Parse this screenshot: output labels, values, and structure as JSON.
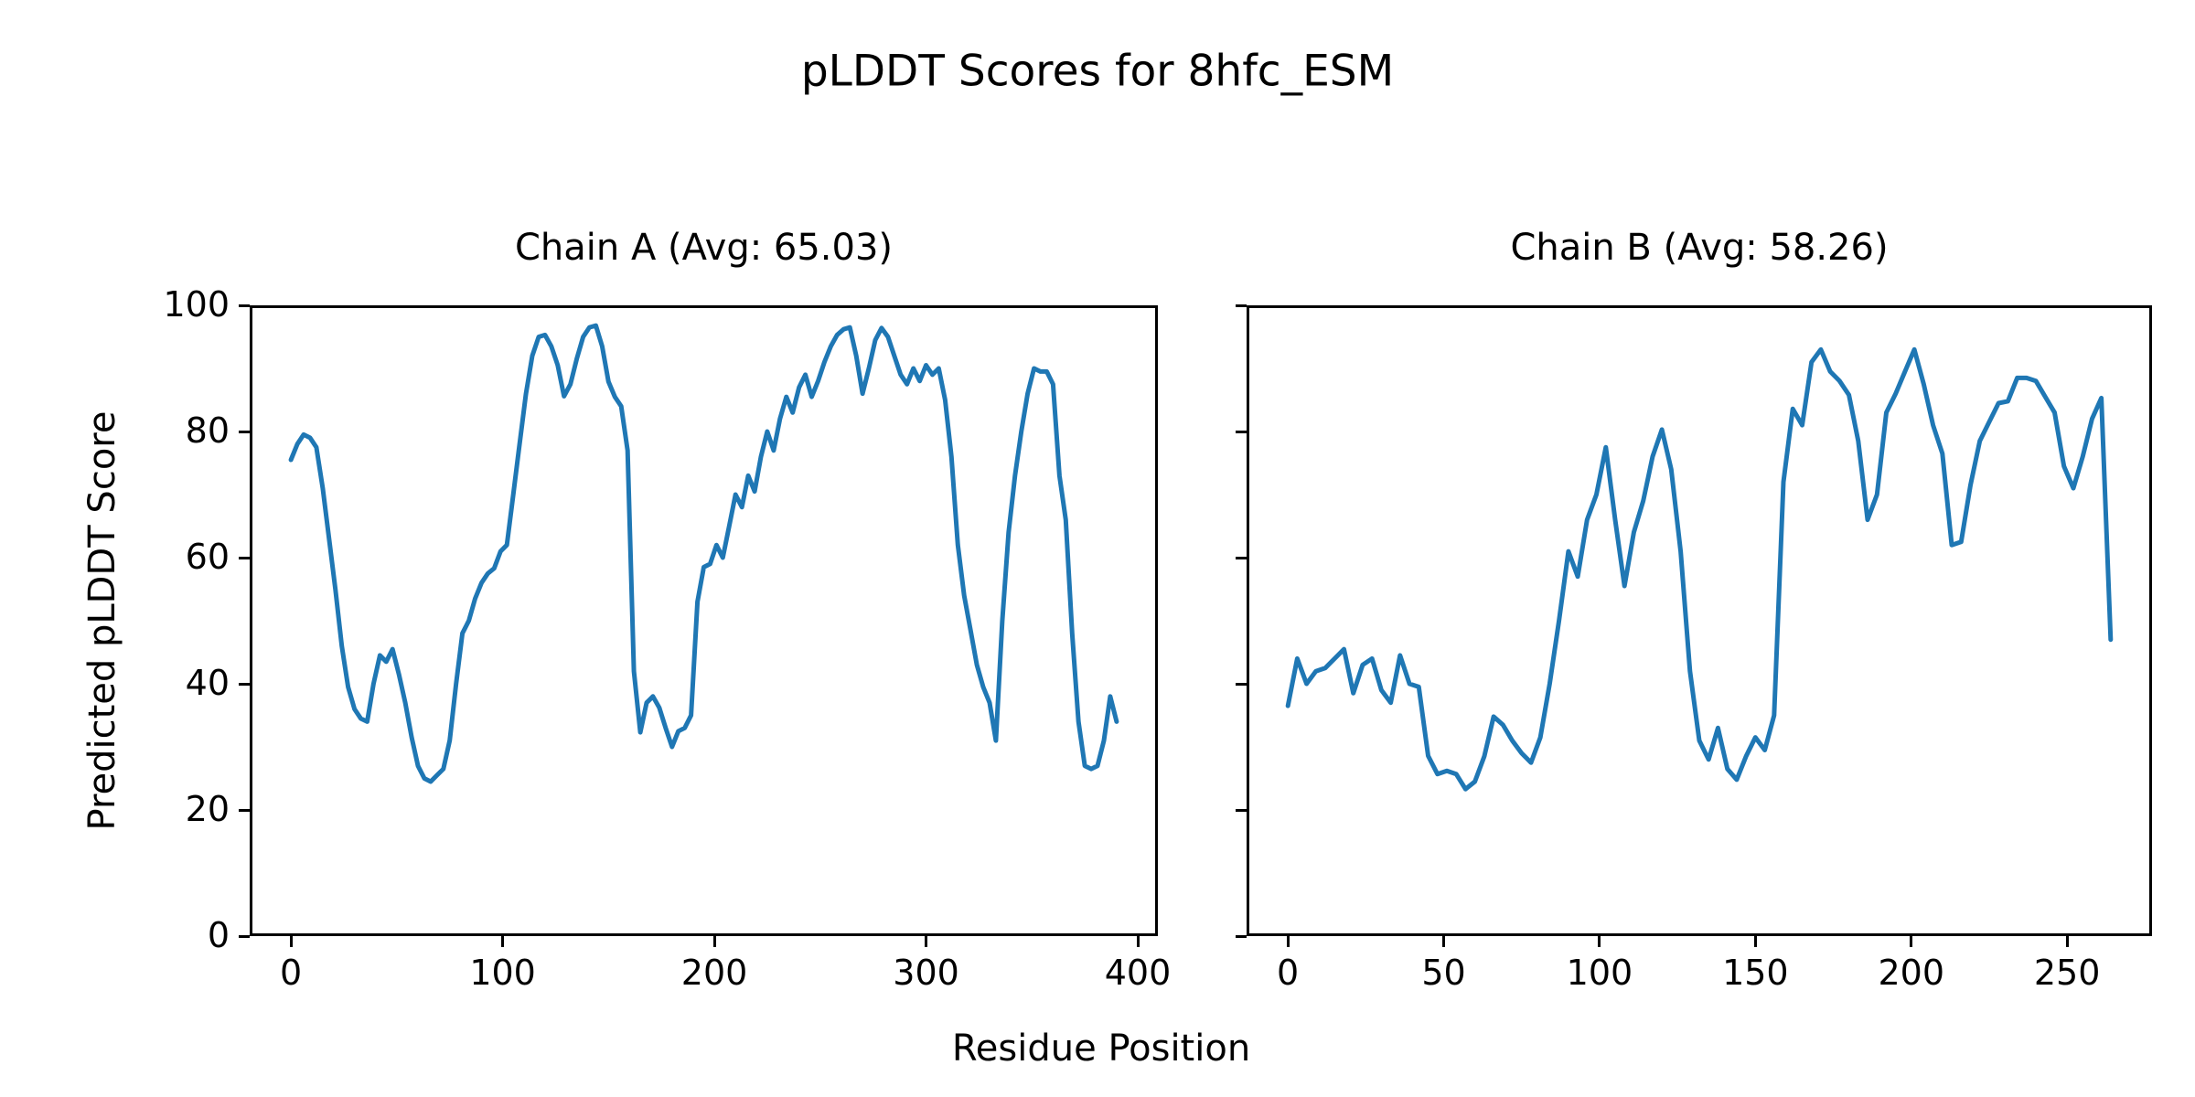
{
  "figure": {
    "title": "pLDDT Scores for 8hfc_ESM",
    "xlabel": "Residue Position",
    "ylabel": "Predicted pLDDT Score",
    "line_color": "#1f77b4",
    "background_color": "#ffffff",
    "text_color": "#000000"
  },
  "chart_data": [
    {
      "type": "line",
      "title": "Chain A (Avg: 65.03)",
      "xlim": [
        -19.5,
        409.5
      ],
      "ylim": [
        0,
        100
      ],
      "xticks": [
        0,
        100,
        200,
        300,
        400
      ],
      "yticks": [
        0,
        20,
        40,
        60,
        80,
        100
      ],
      "show_y_tick_labels": true,
      "grid": false,
      "legend": "none",
      "series": [
        {
          "name": "Chain A pLDDT",
          "x_start": 0,
          "x_step": 3,
          "values": [
            75.5,
            78,
            79.5,
            79,
            77.5,
            71,
            63,
            55,
            46,
            39.5,
            36,
            34.5,
            34,
            40,
            44.5,
            43.5,
            45.5,
            41.5,
            37,
            31.5,
            27,
            25,
            24.5,
            25.5,
            26.5,
            31,
            40,
            48,
            50,
            53.5,
            56,
            57.5,
            58.3,
            61,
            62,
            70,
            78,
            86,
            92,
            95,
            95.3,
            93.5,
            90.5,
            85.6,
            87.5,
            91.5,
            95,
            96.5,
            96.8,
            93.5,
            87.9,
            85.5,
            84,
            77,
            42,
            32.3,
            37,
            38,
            36.2,
            33,
            30,
            32.5,
            33,
            35,
            53,
            58.5,
            59,
            62,
            60,
            65,
            70,
            68,
            73,
            70.5,
            76,
            80,
            77,
            82,
            85.5,
            83,
            87,
            89,
            85.5,
            88,
            91,
            93.5,
            95.3,
            96.2,
            96.5,
            92,
            86,
            90,
            94.5,
            96.4,
            95,
            92,
            89,
            87.5,
            90,
            88,
            90.5,
            89,
            90,
            85,
            76,
            62,
            54,
            48.5,
            43,
            39.5,
            37,
            31,
            50,
            64,
            73,
            80,
            86,
            90,
            89.5,
            89.5,
            87.5,
            73,
            66,
            48,
            34,
            27,
            26.5,
            27,
            31,
            38,
            34
          ]
        }
      ]
    },
    {
      "type": "line",
      "title": "Chain B (Avg: 58.26)",
      "xlim": [
        -13.25,
        277.25
      ],
      "ylim": [
        0,
        100
      ],
      "xticks": [
        0,
        50,
        100,
        150,
        200,
        250
      ],
      "yticks": [
        0,
        20,
        40,
        60,
        80,
        100
      ],
      "show_y_tick_labels": false,
      "grid": false,
      "legend": "none",
      "series": [
        {
          "name": "Chain B pLDDT",
          "x_start": 0,
          "x_step": 3,
          "values": [
            36.5,
            44,
            40,
            42,
            42.5,
            44,
            45.5,
            38.5,
            43,
            44,
            39,
            37,
            44.5,
            40,
            39.5,
            28.6,
            25.7,
            26.2,
            25.7,
            23.3,
            24.5,
            28.5,
            34.8,
            33.5,
            31,
            29,
            27.5,
            31.5,
            40,
            50,
            61,
            57,
            66,
            70,
            77.5,
            66,
            55.5,
            64,
            69,
            76,
            80.3,
            74,
            61,
            42,
            31,
            28,
            33,
            26.5,
            24.8,
            28.5,
            31.5,
            29.5,
            35,
            72,
            83.6,
            81,
            91,
            93,
            89.5,
            88,
            85.8,
            78.5,
            66,
            70,
            83,
            86,
            89.5,
            93,
            87.5,
            81,
            76.5,
            62,
            62.5,
            71.5,
            78.5,
            81.5,
            84.5,
            84.8,
            88.5,
            88.5,
            88,
            85.5,
            83,
            74.5,
            71,
            76,
            82,
            85.3,
            47
          ]
        }
      ]
    }
  ]
}
